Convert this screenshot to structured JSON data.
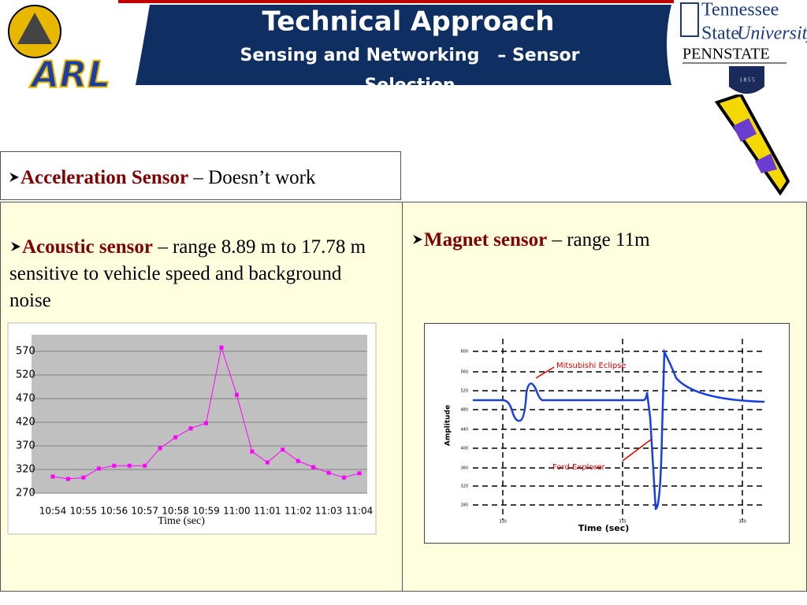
{
  "header": {
    "title": "Technical Approach",
    "subtitle": "Sensing and Networking   – Sensor Selection"
  },
  "logos": {
    "left": "ARL",
    "right_top": "Tennessee",
    "right_mid_1": "State",
    "right_mid_2": "University",
    "right_bottom": "PENNSTATE",
    "year": "1 8 5 5"
  },
  "panels": [
    {
      "heading": "Acceleration Sensor",
      "text": " – Doesn’t work"
    },
    {
      "heading": "Acoustic sensor",
      "text": " –  range 8.89 m to 17.78 m  sensitive to vehicle speed and background noise"
    },
    {
      "heading": "Magnet sensor",
      "text": " – range 11m"
    }
  ],
  "chart_data": {
    "type": "line",
    "x_label": "Time (sec)",
    "categories": [
      "10:54",
      null,
      "10:55",
      null,
      "10:56",
      null,
      "10:57",
      null,
      "10:58",
      null,
      "10:59",
      null,
      "11:00",
      null,
      "11:01",
      null,
      "11:02",
      null,
      "11:03",
      null,
      "11:04"
    ],
    "values": [
      305,
      300,
      303,
      322,
      328,
      328,
      328,
      365,
      388,
      407,
      418,
      578,
      478,
      358,
      335,
      362,
      338,
      325,
      313,
      303,
      312
    ],
    "color": "#ff00ff",
    "ylim": [
      270,
      605
    ],
    "yticks": [
      270,
      320,
      370,
      420,
      470,
      520,
      570
    ],
    "grid": true
  },
  "magnet_figure": {
    "x_label": "Time (sec)",
    "y_label": "Amplitude",
    "annotations": [
      "Mitsubishi Eclipse",
      "Ford Explorer"
    ],
    "yticks": [
      "600",
      "560",
      "520",
      "480",
      "440",
      "400",
      "360",
      "320",
      "280"
    ],
    "xticks": [
      "330",
      "335",
      "340"
    ]
  }
}
